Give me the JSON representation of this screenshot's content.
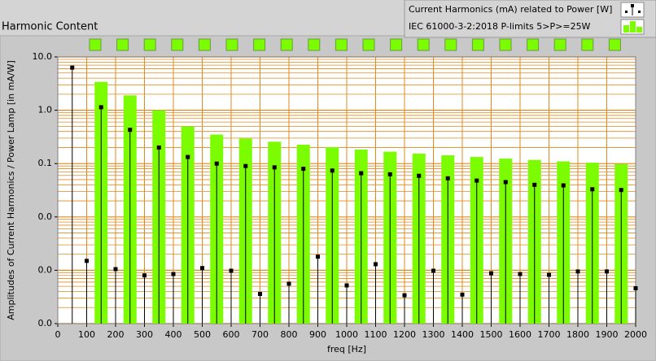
{
  "chart_data": {
    "type": "stem",
    "title": "Harmonic Content",
    "xlabel": "freq [Hz]",
    "ylabel": "Amplitudes of Current Harmonics / Power Lamp [in mA/W]",
    "xlim": [
      0,
      2000
    ],
    "xticks": [
      0,
      100,
      200,
      300,
      400,
      500,
      600,
      700,
      800,
      900,
      1000,
      1100,
      1200,
      1300,
      1400,
      1500,
      1600,
      1700,
      1800,
      1900,
      2000
    ],
    "ylim": [
      0.0001,
      10
    ],
    "yscale": "log",
    "yticks": [
      {
        "value": 10,
        "label": "10.0"
      },
      {
        "value": 1,
        "label": "1.0"
      },
      {
        "value": 0.1,
        "label": "0.1"
      },
      {
        "value": 0.01,
        "label": "0.0"
      },
      {
        "value": 0.001,
        "label": "0.0"
      },
      {
        "value": 0.0001,
        "label": "0.0"
      }
    ],
    "grid": true,
    "grid_color": "#e08a1e",
    "legend": "top-right",
    "series": [
      {
        "name": "IEC 61000-3-2:2018 P-limits 5>P>=25W",
        "color": "#7cfc00",
        "kind": "bar",
        "x": [
          150,
          250,
          350,
          450,
          550,
          650,
          750,
          850,
          950,
          1050,
          1150,
          1250,
          1350,
          1450,
          1550,
          1650,
          1750,
          1850,
          1950
        ],
        "values": [
          3.4,
          1.9,
          1.0,
          0.5,
          0.35,
          0.296,
          0.257,
          0.226,
          0.203,
          0.183,
          0.167,
          0.154,
          0.143,
          0.133,
          0.124,
          0.117,
          0.11,
          0.104,
          0.0987
        ]
      },
      {
        "name": "Current Harmonics (mA) related to Power [W]",
        "color": "#000000",
        "kind": "stem",
        "x": [
          50,
          100,
          150,
          200,
          250,
          300,
          350,
          400,
          450,
          500,
          550,
          600,
          650,
          700,
          750,
          800,
          850,
          900,
          950,
          1000,
          1050,
          1100,
          1150,
          1200,
          1250,
          1300,
          1350,
          1400,
          1450,
          1500,
          1550,
          1600,
          1650,
          1700,
          1750,
          1800,
          1850,
          1900,
          1950,
          2000
        ],
        "values": [
          6.3,
          0.0015,
          1.14,
          0.00105,
          0.43,
          0.0008,
          0.2,
          0.00085,
          0.133,
          0.0011,
          0.1,
          0.00098,
          0.09,
          0.00036,
          0.085,
          0.00056,
          0.08,
          0.0018,
          0.074,
          0.00052,
          0.066,
          0.0013,
          0.063,
          0.00034,
          0.059,
          0.00098,
          0.053,
          0.00035,
          0.048,
          0.00088,
          0.045,
          0.00085,
          0.04,
          0.00082,
          0.039,
          0.00095,
          0.033,
          0.00095,
          0.032,
          0.00046
        ]
      }
    ]
  }
}
